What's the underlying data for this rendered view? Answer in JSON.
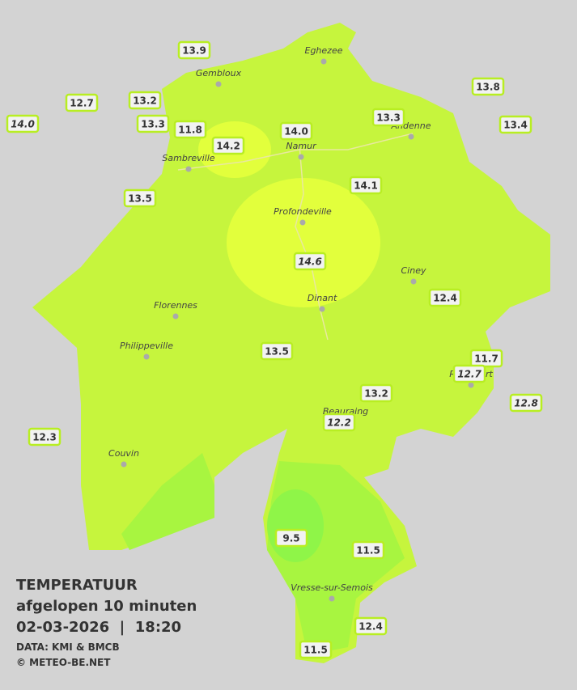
{
  "title": "TEMPERATUUR",
  "subtitle": "afgelopen 10 minuten",
  "datetime": "02-03-2026  |  18:20",
  "source": "DATA: KMI & BMCB",
  "copyright": "© METEO-BE.NET",
  "towns": [
    "Eghezee",
    "Gembloux",
    "Andenne",
    "Namur",
    "Sambreville",
    "Profondeville",
    "Ciney",
    "Dinant",
    "Florennes",
    "Philippeville",
    "Beauraing",
    "Rochefort",
    "Couvin",
    "Vresse-sur-Semois"
  ],
  "stations": [
    "13.9",
    "12.7",
    "13.2",
    "14.0",
    "13.3",
    "11.8",
    "14.2",
    "14.0",
    "13.3",
    "13.8",
    "13.4",
    "13.5",
    "14.1",
    "14.6",
    "12.4",
    "13.5",
    "11.7",
    "12.7",
    "13.2",
    "12.8",
    "12.2",
    "12.3",
    "9.5",
    "11.5",
    "12.4",
    "11.5"
  ]
}
